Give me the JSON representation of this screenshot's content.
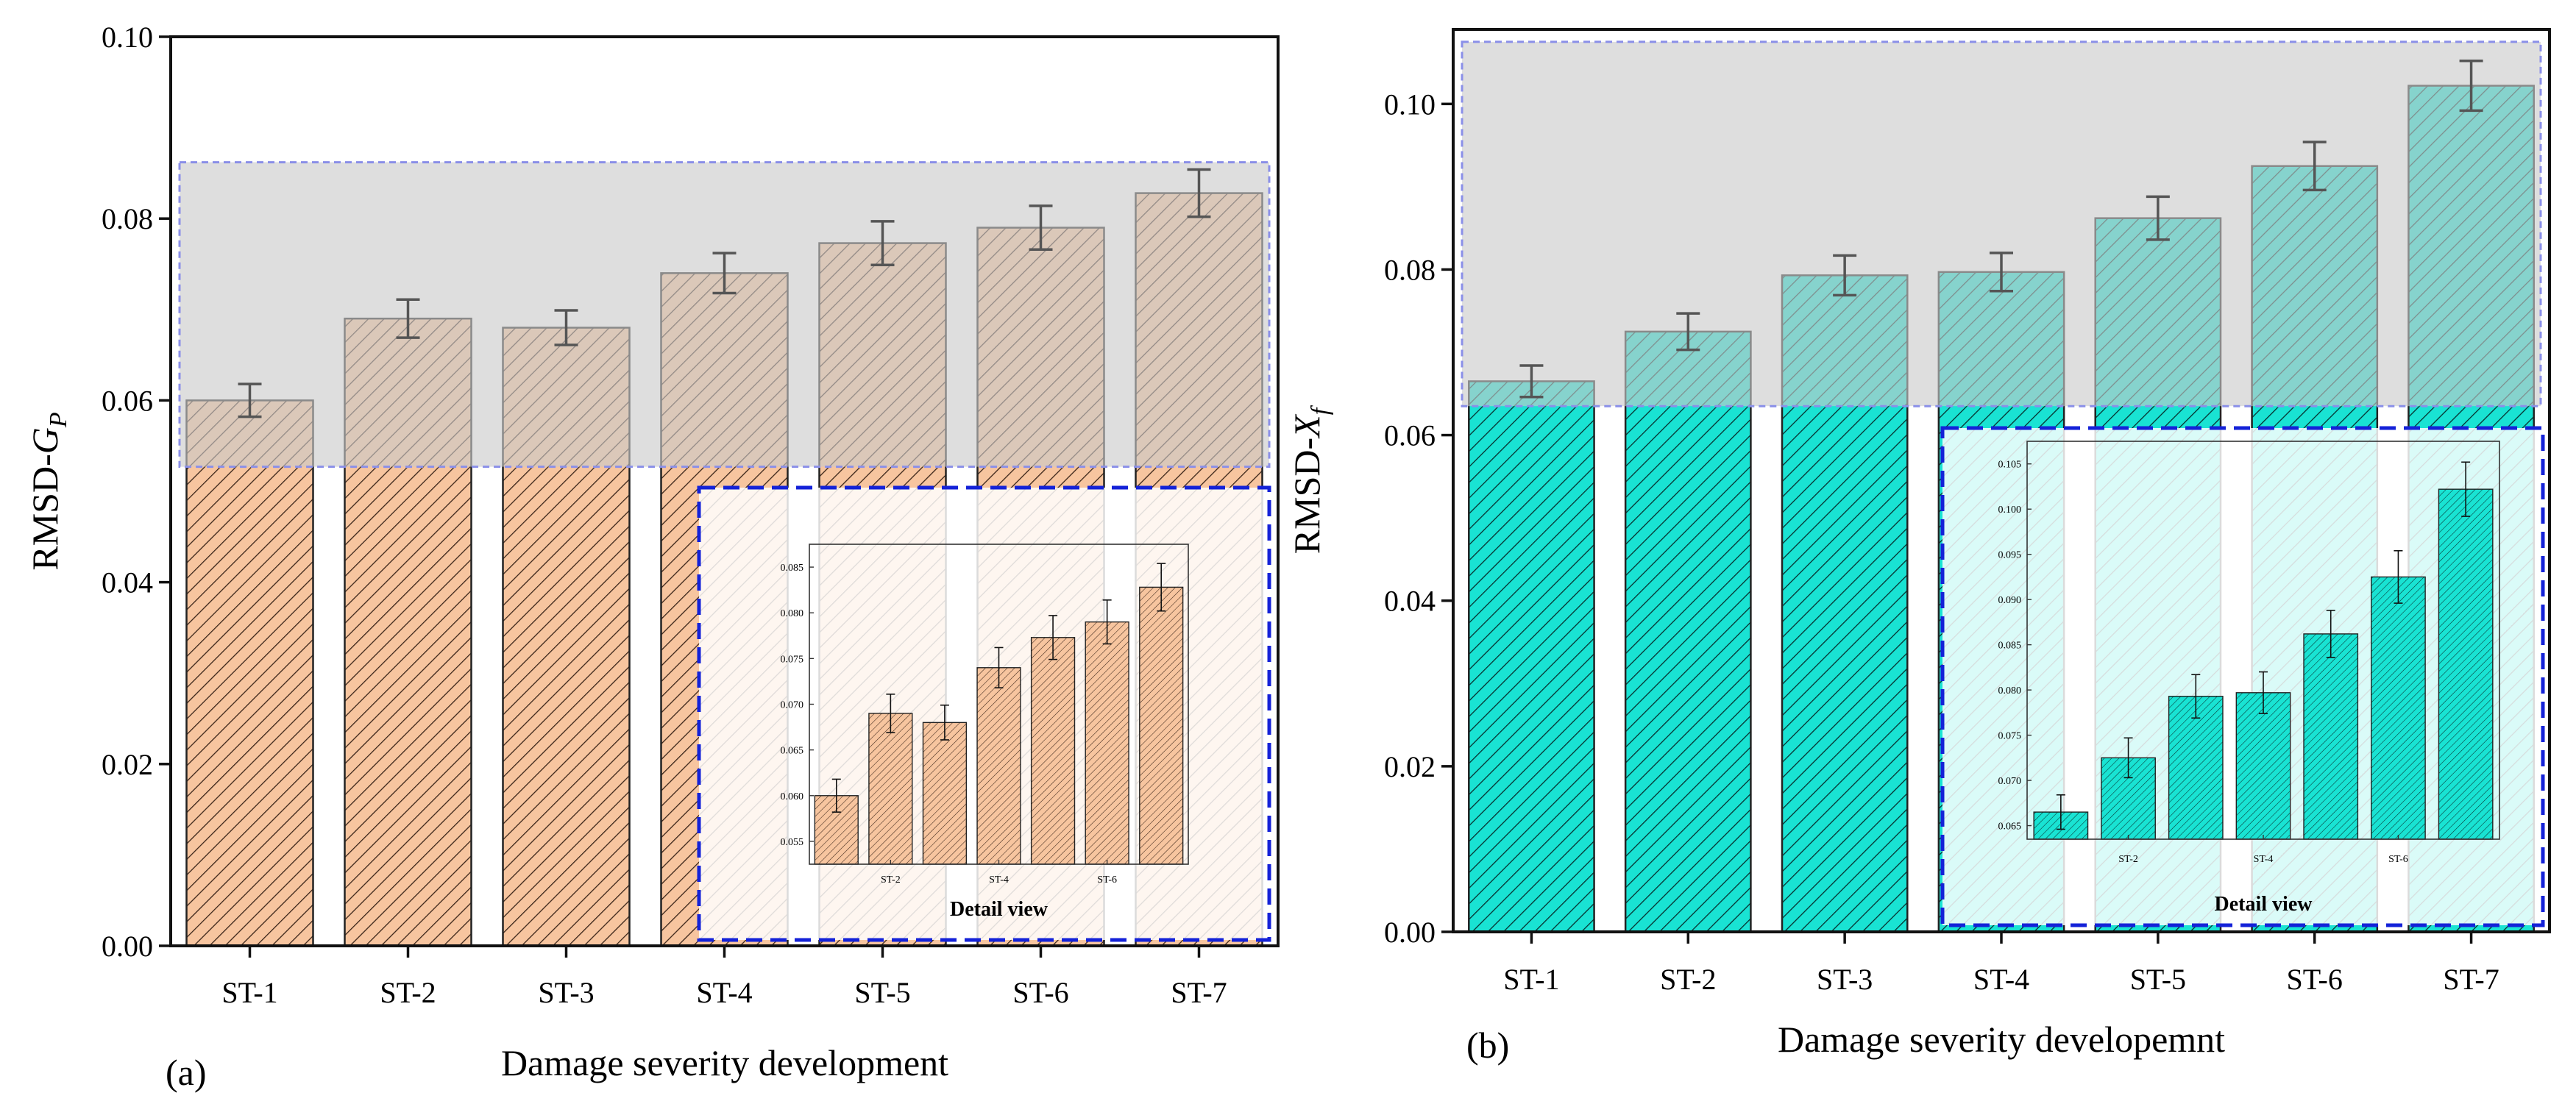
{
  "chart_data": [
    {
      "panel_label": "(a)",
      "type": "bar",
      "categories": [
        "ST-1",
        "ST-2",
        "ST-3",
        "ST-4",
        "ST-5",
        "ST-6",
        "ST-7"
      ],
      "values": [
        0.06,
        0.069,
        0.068,
        0.074,
        0.0773,
        0.079,
        0.0828
      ],
      "errors": [
        0.0018,
        0.0021,
        0.0019,
        0.0022,
        0.0024,
        0.0024,
        0.0026
      ],
      "xlabel": "Damage severity development",
      "ylabel_prefix": "RMSD-",
      "ylabel_symbol": "G",
      "ylabel_sub": "P",
      "ylim": [
        0.0,
        0.1
      ],
      "yticks": [
        0.0,
        0.02,
        0.04,
        0.06,
        0.08,
        0.1
      ],
      "ytick_labels": [
        "0.00",
        "0.02",
        "0.04",
        "0.06",
        "0.08",
        "0.10"
      ],
      "highlight_range": [
        0.0527,
        0.0862
      ],
      "bar_color": "#F7C59F",
      "hatch_color": "#3a2418",
      "inset": {
        "title": "Detail view",
        "ylim": [
          0.0525,
          0.0875
        ],
        "yticks": [
          0.055,
          0.06,
          0.065,
          0.07,
          0.075,
          0.08,
          0.085
        ],
        "ytick_labels": [
          "0.055",
          "0.060",
          "0.065",
          "0.070",
          "0.075",
          "0.080",
          "0.085"
        ],
        "xtick_labels": [
          "ST-2",
          "ST-4",
          "ST-6"
        ]
      }
    },
    {
      "panel_label": "(b)",
      "type": "bar",
      "categories": [
        "ST-1",
        "ST-2",
        "ST-3",
        "ST-4",
        "ST-5",
        "ST-6",
        "ST-7"
      ],
      "values": [
        0.0665,
        0.0725,
        0.0793,
        0.0797,
        0.0862,
        0.0925,
        0.1022
      ],
      "errors": [
        0.0019,
        0.0022,
        0.0024,
        0.0023,
        0.0026,
        0.0029,
        0.003
      ],
      "xlabel": "Damage severity developemnt",
      "ylabel_prefix": "RMSD-",
      "ylabel_symbol": "X",
      "ylabel_sub": "f",
      "ylim": [
        0.0,
        0.109
      ],
      "yticks": [
        0.0,
        0.02,
        0.04,
        0.06,
        0.08,
        0.1
      ],
      "ytick_labels": [
        "0.00",
        "0.02",
        "0.04",
        "0.06",
        "0.08",
        "0.10"
      ],
      "highlight_range": [
        0.0635,
        0.1075
      ],
      "bar_color": "#19E3D3",
      "hatch_color": "#06302e",
      "inset": {
        "title": "Detail view",
        "ylim": [
          0.0635,
          0.1075
        ],
        "yticks": [
          0.065,
          0.07,
          0.075,
          0.08,
          0.085,
          0.09,
          0.095,
          0.1,
          0.105
        ],
        "ytick_labels": [
          "0.065",
          "0.070",
          "0.075",
          "0.080",
          "0.085",
          "0.090",
          "0.095",
          "0.100",
          "0.105"
        ],
        "xtick_labels": [
          "ST-2",
          "ST-4",
          "ST-6"
        ]
      }
    }
  ]
}
